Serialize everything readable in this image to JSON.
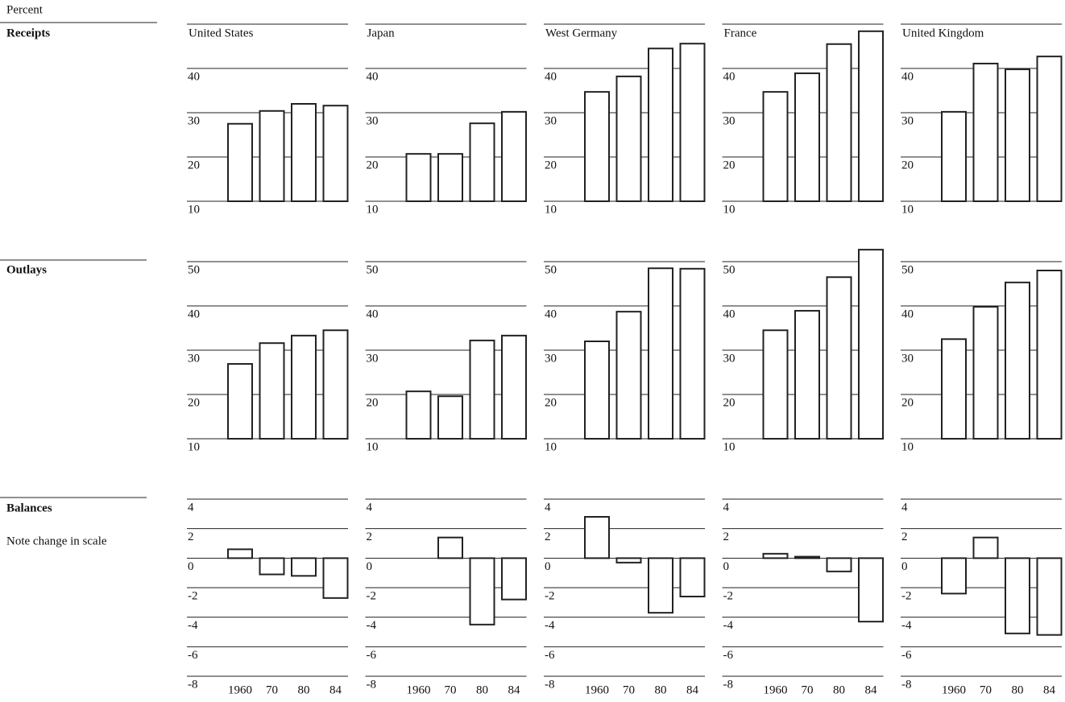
{
  "unit_label": "Percent",
  "row_labels": [
    "Receipts",
    "Outlays",
    "Balances"
  ],
  "note": "Note change in scale",
  "chart_data": [
    {
      "type": "bar",
      "title": "United States",
      "values": [
        27.5,
        30.4,
        32.0,
        31.6
      ],
      "ylim": [
        10,
        50
      ],
      "yticks": [
        10,
        20,
        30,
        40
      ]
    },
    {
      "type": "bar",
      "title": "Japan",
      "values": [
        20.7,
        20.7,
        27.6,
        30.2
      ],
      "ylim": [
        10,
        50
      ],
      "yticks": [
        10,
        20,
        30,
        40
      ]
    },
    {
      "type": "bar",
      "title": "West Germany",
      "values": [
        34.7,
        38.2,
        44.5,
        45.6
      ],
      "ylim": [
        10,
        50
      ],
      "yticks": [
        10,
        20,
        30,
        40
      ]
    },
    {
      "type": "bar",
      "title": "France",
      "values": [
        34.7,
        38.9,
        45.5,
        48.4
      ],
      "ylim": [
        10,
        50
      ],
      "yticks": [
        10,
        20,
        30,
        40
      ]
    },
    {
      "type": "bar",
      "title": "United Kingdom",
      "values": [
        30.2,
        41.1,
        39.8,
        42.7
      ],
      "ylim": [
        10,
        50
      ],
      "yticks": [
        10,
        20,
        30,
        40
      ]
    },
    {
      "type": "bar",
      "values": [
        26.9,
        31.6,
        33.3,
        34.5
      ],
      "ylim": [
        10,
        50
      ],
      "yticks": [
        10,
        20,
        30,
        40,
        50
      ]
    },
    {
      "type": "bar",
      "values": [
        20.7,
        19.6,
        32.2,
        33.3
      ],
      "ylim": [
        10,
        50
      ],
      "yticks": [
        10,
        20,
        30,
        40,
        50
      ]
    },
    {
      "type": "bar",
      "values": [
        32.0,
        38.7,
        48.5,
        48.4
      ],
      "ylim": [
        10,
        50
      ],
      "yticks": [
        10,
        20,
        30,
        40,
        50
      ]
    },
    {
      "type": "bar",
      "values": [
        34.5,
        38.9,
        46.5,
        52.7
      ],
      "ylim": [
        10,
        50
      ],
      "yticks": [
        10,
        20,
        30,
        40,
        50
      ]
    },
    {
      "type": "bar",
      "values": [
        32.5,
        39.8,
        45.3,
        48.0
      ],
      "ylim": [
        10,
        50
      ],
      "yticks": [
        10,
        20,
        30,
        40,
        50
      ]
    },
    {
      "type": "bar",
      "categories": [
        "1960",
        "70",
        "80",
        "84"
      ],
      "values": [
        0.6,
        -1.1,
        -1.2,
        -2.7
      ],
      "ylim": [
        -8,
        4
      ],
      "yticks": [
        -8,
        -6,
        -4,
        -2,
        0,
        2,
        4
      ]
    },
    {
      "type": "bar",
      "categories": [
        "1960",
        "70",
        "80",
        "84"
      ],
      "values": [
        0,
        1.4,
        -4.5,
        -2.8
      ],
      "ylim": [
        -8,
        4
      ],
      "yticks": [
        -8,
        -6,
        -4,
        -2,
        0,
        2,
        4
      ]
    },
    {
      "type": "bar",
      "categories": [
        "1960",
        "70",
        "80",
        "84"
      ],
      "values": [
        2.8,
        -0.3,
        -3.7,
        -2.6
      ],
      "ylim": [
        -8,
        4
      ],
      "yticks": [
        -8,
        -6,
        -4,
        -2,
        0,
        2,
        4
      ]
    },
    {
      "type": "bar",
      "categories": [
        "1960",
        "70",
        "80",
        "84"
      ],
      "values": [
        0.3,
        0.1,
        -0.9,
        -4.3
      ],
      "ylim": [
        -8,
        4
      ],
      "yticks": [
        -8,
        -6,
        -4,
        -2,
        0,
        2,
        4
      ]
    },
    {
      "type": "bar",
      "categories": [
        "1960",
        "70",
        "80",
        "84"
      ],
      "values": [
        -2.4,
        1.4,
        -5.1,
        -5.2
      ],
      "ylim": [
        -8,
        4
      ],
      "yticks": [
        -8,
        -6,
        -4,
        -2,
        0,
        2,
        4
      ]
    }
  ]
}
